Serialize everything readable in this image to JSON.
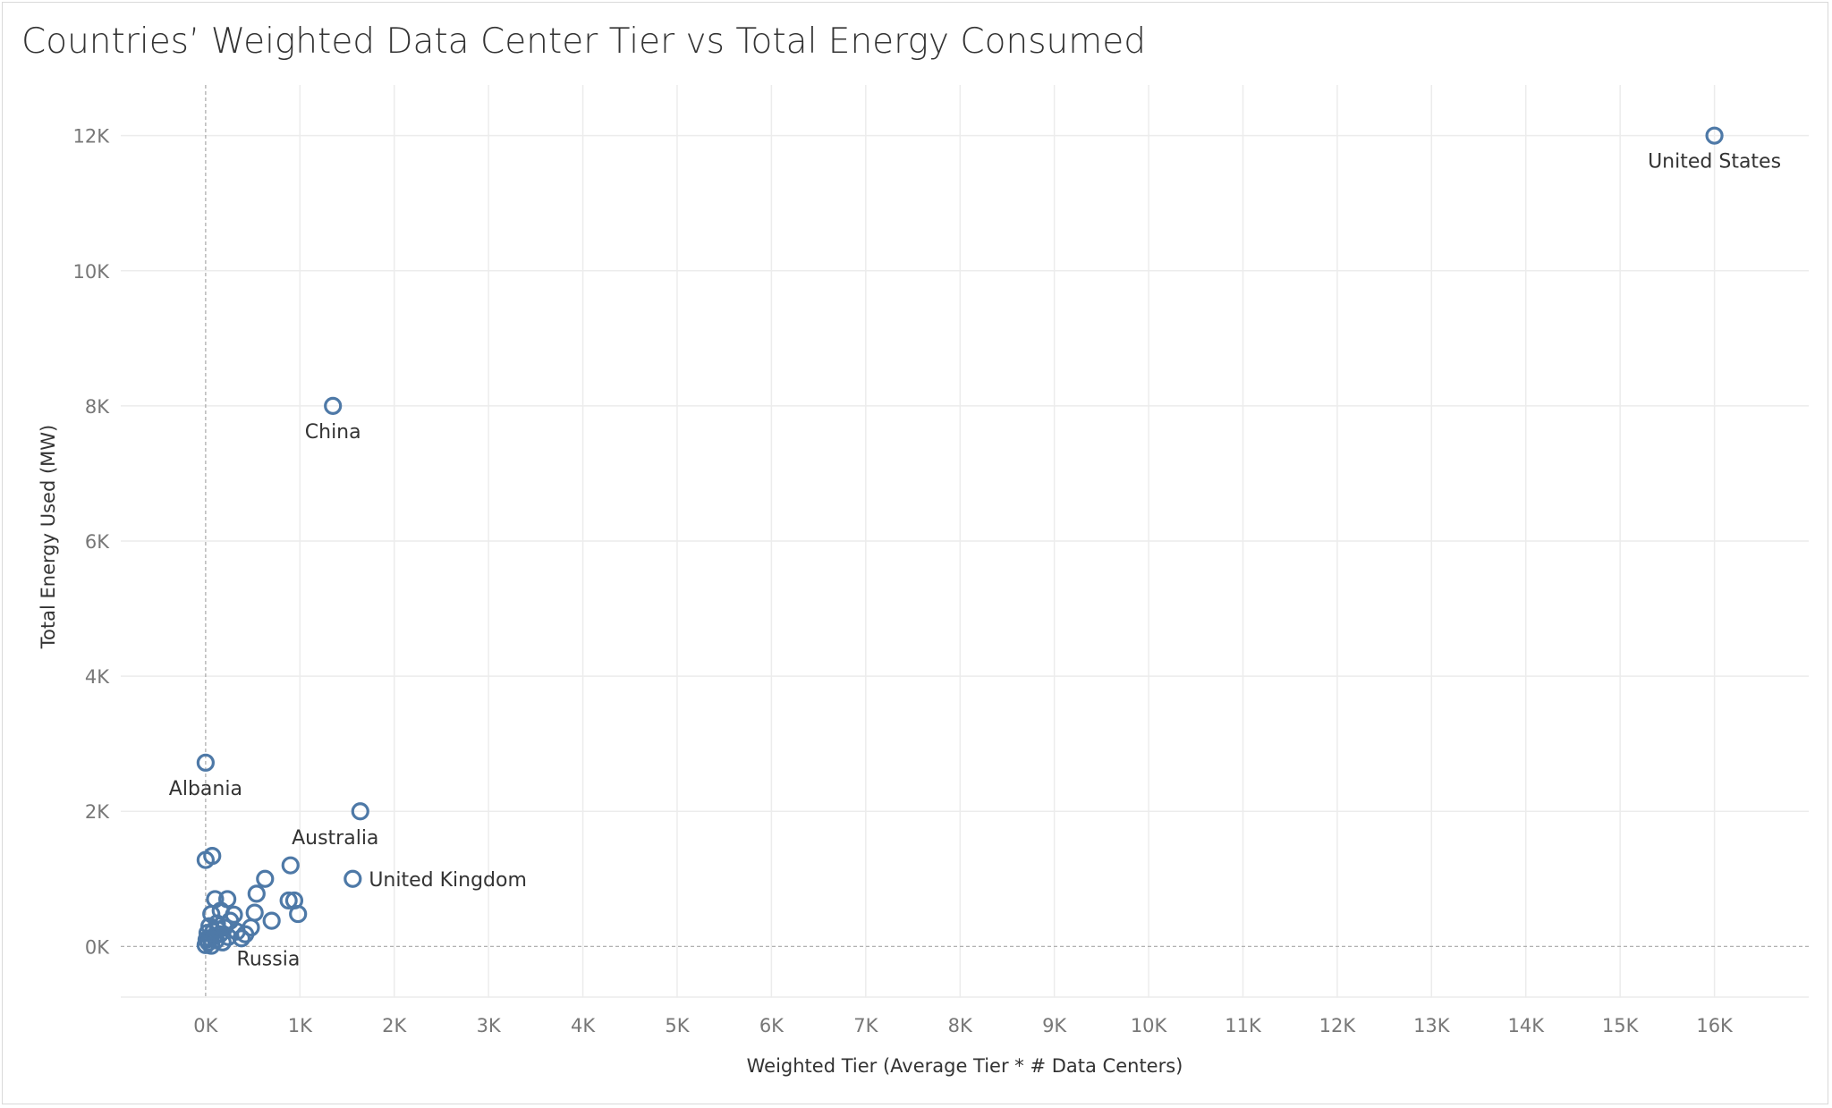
{
  "chart_data": {
    "type": "scatter",
    "title": "Countries’ Weighted Data Center Tier vs Total Energy Consumed",
    "xlabel": "Weighted Tier (Average Tier * # Data Centers)",
    "ylabel": "Total Energy Used (MW)",
    "xlim": [
      -900,
      17000
    ],
    "ylim": [
      -750,
      12750
    ],
    "x_ticks": [
      0,
      1000,
      2000,
      3000,
      4000,
      5000,
      6000,
      7000,
      8000,
      9000,
      10000,
      11000,
      12000,
      13000,
      14000,
      15000,
      16000
    ],
    "x_tick_labels": [
      "0K",
      "1K",
      "2K",
      "3K",
      "4K",
      "5K",
      "6K",
      "7K",
      "8K",
      "9K",
      "10K",
      "11K",
      "12K",
      "13K",
      "14K",
      "15K",
      "16K"
    ],
    "y_ticks": [
      0,
      2000,
      4000,
      6000,
      8000,
      10000,
      12000
    ],
    "y_tick_labels": [
      "0K",
      "2K",
      "4K",
      "6K",
      "8K",
      "10K",
      "12K"
    ],
    "grid": true,
    "marker_color": "#4e79a7",
    "points": [
      {
        "x": 16000,
        "y": 12000,
        "label": "United States",
        "label_pos": "below"
      },
      {
        "x": 1350,
        "y": 8000,
        "label": "China",
        "label_pos": "below"
      },
      {
        "x": 0,
        "y": 2720,
        "label": "Albania",
        "label_pos": "below"
      },
      {
        "x": 1640,
        "y": 2000,
        "label": "Australia",
        "label_pos": "below-left"
      },
      {
        "x": 1560,
        "y": 1000,
        "label": "United Kingdom",
        "label_pos": "right"
      },
      {
        "x": 380,
        "y": 120,
        "label": "Russia",
        "label_pos": "below-right"
      },
      {
        "x": 0,
        "y": 1280
      },
      {
        "x": 70,
        "y": 1340
      },
      {
        "x": 900,
        "y": 1200
      },
      {
        "x": 630,
        "y": 1000
      },
      {
        "x": 540,
        "y": 780
      },
      {
        "x": 880,
        "y": 680
      },
      {
        "x": 940,
        "y": 680
      },
      {
        "x": 980,
        "y": 480
      },
      {
        "x": 700,
        "y": 380
      },
      {
        "x": 520,
        "y": 500
      },
      {
        "x": 480,
        "y": 280
      },
      {
        "x": 230,
        "y": 700
      },
      {
        "x": 100,
        "y": 700
      },
      {
        "x": 300,
        "y": 470
      },
      {
        "x": 160,
        "y": 530
      },
      {
        "x": 60,
        "y": 480
      },
      {
        "x": 260,
        "y": 380
      },
      {
        "x": 200,
        "y": 280
      },
      {
        "x": 330,
        "y": 220
      },
      {
        "x": 420,
        "y": 180
      },
      {
        "x": 120,
        "y": 340
      },
      {
        "x": 40,
        "y": 300
      },
      {
        "x": 150,
        "y": 180
      },
      {
        "x": 80,
        "y": 220
      },
      {
        "x": 20,
        "y": 200
      },
      {
        "x": 240,
        "y": 140
      },
      {
        "x": 50,
        "y": 120
      },
      {
        "x": 110,
        "y": 90
      },
      {
        "x": 30,
        "y": 60
      },
      {
        "x": 180,
        "y": 60
      },
      {
        "x": 0,
        "y": 20
      },
      {
        "x": 60,
        "y": 10
      },
      {
        "x": 10,
        "y": 100
      },
      {
        "x": 90,
        "y": 150
      },
      {
        "x": 130,
        "y": 250
      }
    ]
  }
}
